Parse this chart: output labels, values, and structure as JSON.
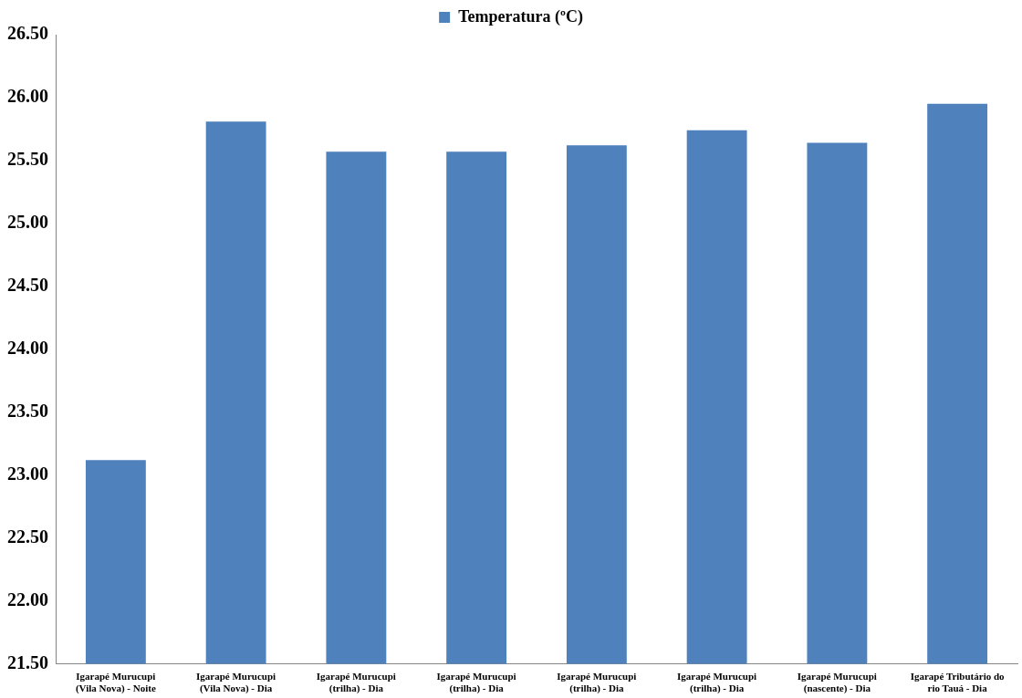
{
  "chart_data": {
    "type": "bar",
    "categories": [
      "Igarapé Murucupi (Vila Nova) - Noite",
      "Igarapé Murucupi (Vila Nova) - Dia",
      "Igarapé Murucupi (trilha) - Dia",
      "Igarapé Murucupi (trilha) - Dia",
      "Igarapé Murucupi (trilha) - Dia",
      "Igarapé Murucupi (trilha) - Dia",
      "Igarapé Murucupi (nascente) - Dia",
      "Igarapé Tributário do rio Tauá - Dia"
    ],
    "series": [
      {
        "name": "Temperatura (ºC)",
        "color": "#4f81bd",
        "values": [
          23.12,
          25.81,
          25.57,
          25.57,
          25.62,
          25.74,
          25.64,
          25.95
        ]
      }
    ],
    "ylim": [
      21.5,
      26.5
    ],
    "yticks": [
      {
        "value": 21.5,
        "label": "21.50"
      },
      {
        "value": 22,
        "label": "22.00"
      },
      {
        "value": 22.5,
        "label": "22.50"
      },
      {
        "value": 23,
        "label": "23.00"
      },
      {
        "value": 23.5,
        "label": "23.50"
      },
      {
        "value": 24,
        "label": "24.00"
      },
      {
        "value": 24.5,
        "label": "24.50"
      },
      {
        "value": 25,
        "label": "25.00"
      },
      {
        "value": 25.5,
        "label": "25.50"
      },
      {
        "value": 26,
        "label": "26.00"
      },
      {
        "value": 26.5,
        "label": "26.50"
      }
    ],
    "grid": false,
    "legend": "top"
  }
}
